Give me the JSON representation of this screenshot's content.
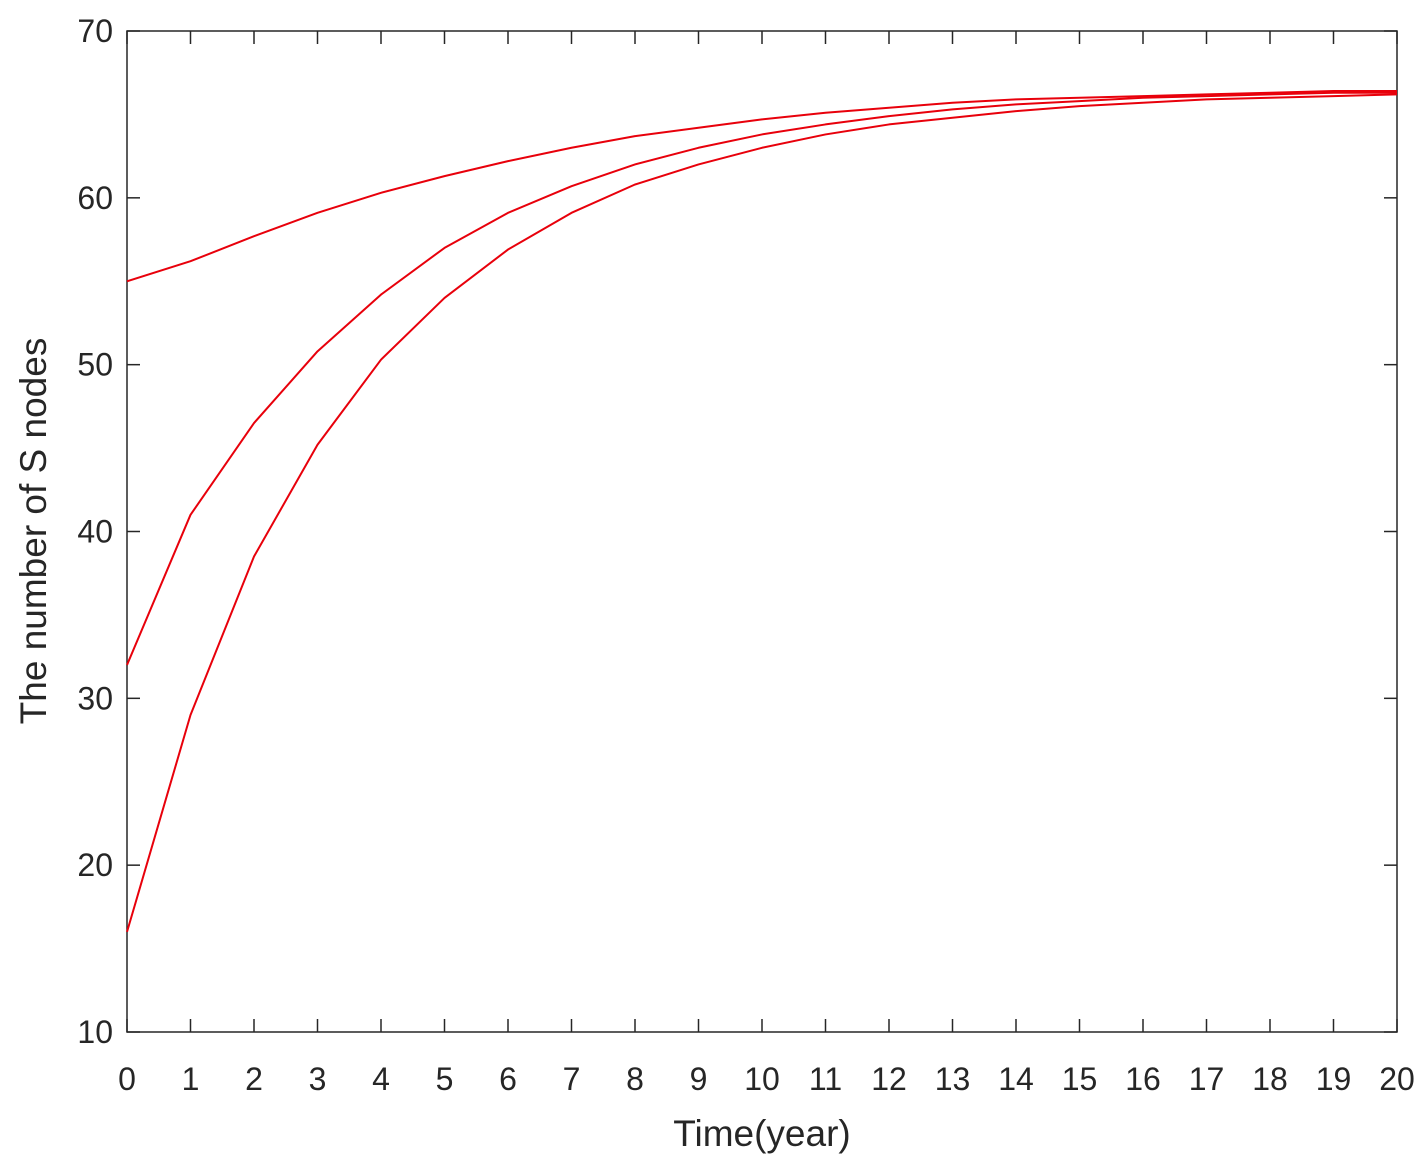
{
  "chart_data": {
    "type": "line",
    "x_label": "Time(year)",
    "y_label": "The number of S nodes",
    "x": [
      0,
      1,
      2,
      3,
      4,
      5,
      6,
      7,
      8,
      9,
      10,
      11,
      12,
      13,
      14,
      15,
      16,
      17,
      18,
      19,
      20
    ],
    "series": [
      {
        "color": "#e8000b",
        "values": [
          55,
          56.2,
          57.7,
          59.1,
          60.3,
          61.3,
          62.2,
          63.0,
          63.7,
          64.2,
          64.7,
          65.1,
          65.4,
          65.7,
          65.9,
          66.0,
          66.1,
          66.2,
          66.3,
          66.4,
          66.4
        ]
      },
      {
        "color": "#e8000b",
        "values": [
          32,
          41,
          46.5,
          50.8,
          54.2,
          57.0,
          59.1,
          60.7,
          62.0,
          63.0,
          63.8,
          64.4,
          64.9,
          65.3,
          65.6,
          65.8,
          66.0,
          66.1,
          66.2,
          66.3,
          66.3
        ]
      },
      {
        "color": "#e8000b",
        "values": [
          16,
          29,
          38.5,
          45.2,
          50.3,
          54.0,
          56.9,
          59.1,
          60.8,
          62.0,
          63.0,
          63.8,
          64.4,
          64.8,
          65.2,
          65.5,
          65.7,
          65.9,
          66.0,
          66.1,
          66.2
        ]
      }
    ],
    "xlim": [
      0,
      20
    ],
    "xticks": [
      0,
      1,
      2,
      3,
      4,
      5,
      6,
      7,
      8,
      9,
      10,
      11,
      12,
      13,
      14,
      15,
      16,
      17,
      18,
      19,
      20
    ],
    "ylim": [
      10,
      70
    ],
    "yticks": [
      10,
      20,
      30,
      40,
      50,
      60,
      70
    ]
  }
}
